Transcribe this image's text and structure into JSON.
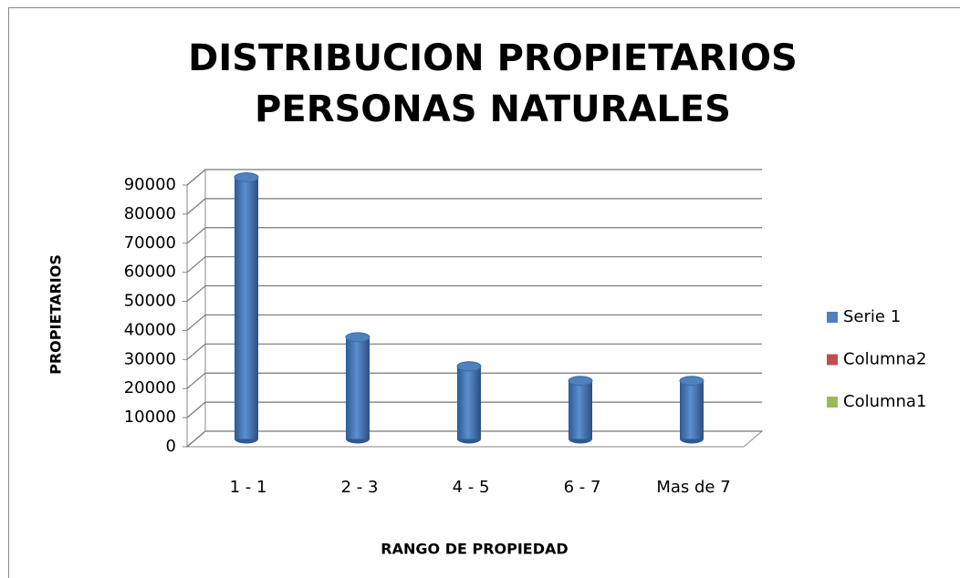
{
  "chart_data": {
    "type": "bar3d",
    "title": "DISTRIBUCION PROPIETARIOS PERSONAS NATURALES",
    "x_label": "RANGO DE PROPIEDAD",
    "y_label": "PROPIETARIOS",
    "categories": [
      "1 - 1",
      "2 - 3",
      "4 - 5",
      "6 - 7",
      "Mas de 7"
    ],
    "series": [
      {
        "name": "Serie 1",
        "color": "#4f81bd",
        "values": [
          90000,
          35000,
          25000,
          20000,
          20000
        ]
      },
      {
        "name": "Columna2",
        "color": "#c0504d",
        "values": [
          null,
          null,
          null,
          null,
          null
        ]
      },
      {
        "name": "Columna1",
        "color": "#9bbb59",
        "values": [
          null,
          null,
          null,
          null,
          null
        ]
      }
    ],
    "ylim": [
      0,
      90000
    ],
    "yticks": [
      0,
      10000,
      20000,
      30000,
      40000,
      50000,
      60000,
      70000,
      80000,
      90000
    ],
    "grid": true,
    "legend": "right"
  }
}
